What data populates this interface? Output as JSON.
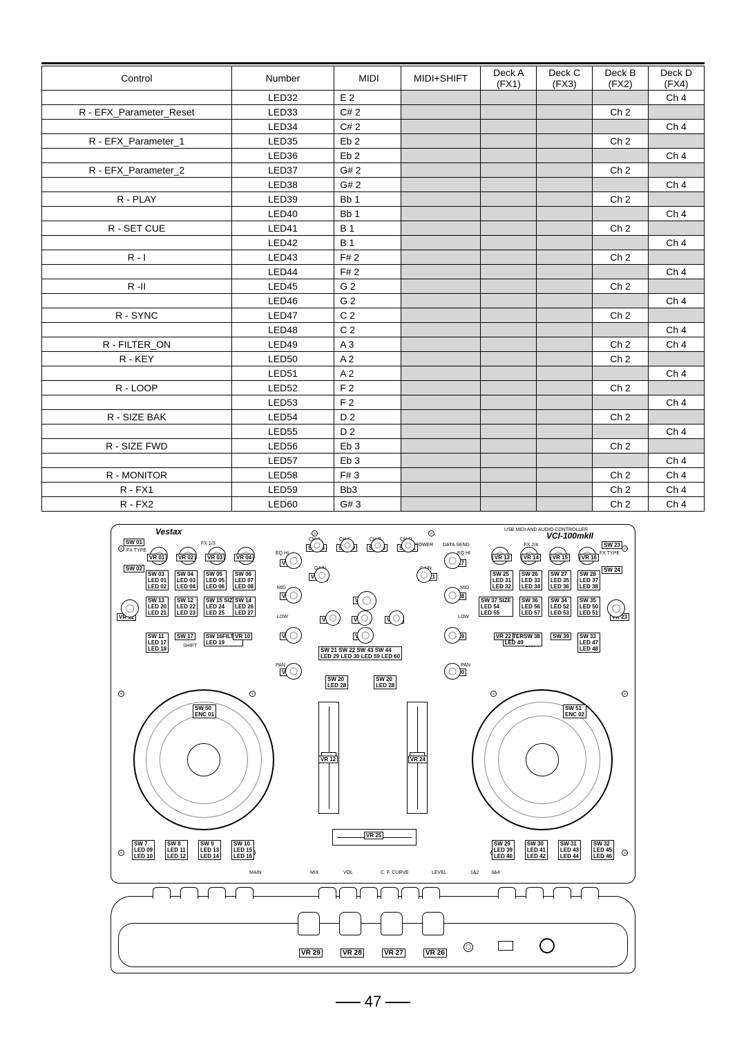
{
  "table": {
    "headers": [
      "Control",
      "Number",
      "MIDI",
      "MIDI+SHIFT",
      "Deck A\n(FX1)",
      "Deck C\n(FX3)",
      "Deck B\n(FX2)",
      "Deck D\n(FX4)"
    ],
    "rows": [
      {
        "control": "",
        "number": "LED32",
        "midi": "E 2",
        "deckA": "",
        "deckC": "",
        "deckB": "",
        "deckD": "Ch 4"
      },
      {
        "control": "R - EFX_Parameter_Reset",
        "number": "LED33",
        "midi": "C# 2",
        "deckA": "",
        "deckC": "",
        "deckB": "Ch 2",
        "deckD": ""
      },
      {
        "control": "",
        "number": "LED34",
        "midi": "C# 2",
        "deckA": "",
        "deckC": "",
        "deckB": "",
        "deckD": "Ch 4"
      },
      {
        "control": "R - EFX_Parameter_1",
        "number": "LED35",
        "midi": "Eb 2",
        "deckA": "",
        "deckC": "",
        "deckB": "Ch 2",
        "deckD": ""
      },
      {
        "control": "",
        "number": "LED36",
        "midi": "Eb 2",
        "deckA": "",
        "deckC": "",
        "deckB": "",
        "deckD": "Ch 4"
      },
      {
        "control": "R - EFX_Parameter_2",
        "number": "LED37",
        "midi": "G# 2",
        "deckA": "",
        "deckC": "",
        "deckB": "Ch 2",
        "deckD": ""
      },
      {
        "control": "",
        "number": "LED38",
        "midi": "G# 2",
        "deckA": "",
        "deckC": "",
        "deckB": "",
        "deckD": "Ch 4"
      },
      {
        "control": "R - PLAY",
        "number": "LED39",
        "midi": "Bb 1",
        "deckA": "",
        "deckC": "",
        "deckB": "Ch 2",
        "deckD": ""
      },
      {
        "control": "",
        "number": "LED40",
        "midi": "Bb 1",
        "deckA": "",
        "deckC": "",
        "deckB": "",
        "deckD": "Ch 4"
      },
      {
        "control": "R - SET CUE",
        "number": "LED41",
        "midi": "B 1",
        "deckA": "",
        "deckC": "",
        "deckB": "Ch 2",
        "deckD": ""
      },
      {
        "control": "",
        "number": "LED42",
        "midi": "B 1",
        "deckA": "",
        "deckC": "",
        "deckB": "",
        "deckD": "Ch 4"
      },
      {
        "control": "R - I",
        "number": "LED43",
        "midi": "F# 2",
        "deckA": "",
        "deckC": "",
        "deckB": "Ch 2",
        "deckD": ""
      },
      {
        "control": "",
        "number": "LED44",
        "midi": "F# 2",
        "deckA": "",
        "deckC": "",
        "deckB": "",
        "deckD": "Ch 4"
      },
      {
        "control": "R -II",
        "number": "LED45",
        "midi": "G 2",
        "deckA": "",
        "deckC": "",
        "deckB": "Ch 2",
        "deckD": ""
      },
      {
        "control": "",
        "number": "LED46",
        "midi": "G 2",
        "deckA": "",
        "deckC": "",
        "deckB": "",
        "deckD": "Ch 4"
      },
      {
        "control": "R - SYNC",
        "number": "LED47",
        "midi": "C 2",
        "deckA": "",
        "deckC": "",
        "deckB": "Ch 2",
        "deckD": ""
      },
      {
        "control": "",
        "number": "LED48",
        "midi": "C 2",
        "deckA": "",
        "deckC": "",
        "deckB": "",
        "deckD": "Ch 4"
      },
      {
        "control": "R - FILTER_ON",
        "number": "LED49",
        "midi": "A 3",
        "deckA": "",
        "deckC": "",
        "deckB": "Ch 2",
        "deckD": "Ch 4"
      },
      {
        "control": "R - KEY",
        "number": "LED50",
        "midi": "A 2",
        "deckA": "",
        "deckC": "",
        "deckB": "Ch 2",
        "deckD": ""
      },
      {
        "control": "",
        "number": "LED51",
        "midi": "A 2",
        "deckA": "",
        "deckC": "",
        "deckB": "",
        "deckD": "Ch 4"
      },
      {
        "control": "R - LOOP",
        "number": "LED52",
        "midi": "F 2",
        "deckA": "",
        "deckC": "",
        "deckB": "Ch 2",
        "deckD": ""
      },
      {
        "control": "",
        "number": "LED53",
        "midi": "F 2",
        "deckA": "",
        "deckC": "",
        "deckB": "",
        "deckD": "Ch 4"
      },
      {
        "control": "R - SIZE BAK",
        "number": "LED54",
        "midi": "D 2",
        "deckA": "",
        "deckC": "",
        "deckB": "Ch 2",
        "deckD": ""
      },
      {
        "control": "",
        "number": "LED55",
        "midi": "D 2",
        "deckA": "",
        "deckC": "",
        "deckB": "",
        "deckD": "Ch 4"
      },
      {
        "control": "R - SIZE FWD",
        "number": "LED56",
        "midi": "Eb 3",
        "deckA": "",
        "deckC": "",
        "deckB": "Ch 2",
        "deckD": ""
      },
      {
        "control": "",
        "number": "LED57",
        "midi": "Eb 3",
        "deckA": "",
        "deckC": "",
        "deckB": "",
        "deckD": "Ch 4"
      },
      {
        "control": "R - MONITOR",
        "number": "LED58",
        "midi": "F# 3",
        "deckA": "",
        "deckC": "",
        "deckB": "Ch 2",
        "deckD": "Ch 4"
      },
      {
        "control": "R - FX1",
        "number": "LED59",
        "midi": "Bb3",
        "deckA": "",
        "deckC": "",
        "deckB": "Ch 2",
        "deckD": "Ch 4"
      },
      {
        "control": "R - FX2",
        "number": "LED60",
        "midi": "G# 3",
        "deckA": "",
        "deckC": "",
        "deckB": "Ch 2",
        "deckD": "Ch 4"
      }
    ]
  },
  "diagram": {
    "brand": "Vestax",
    "model_sub": "USB MIDI AND AUDIO CONTROLLER",
    "model": "VCI-100mkII",
    "fx13": "FX 1/3",
    "fx24": "FX 2/4",
    "left_top_sw": "SW 01",
    "left_fxtype": "FX TYPE",
    "left_sw02": "SW 02",
    "right_top_sw": "SW 23",
    "right_fxtype": "FX TYPE",
    "right_sw24": "SW 24",
    "row1": [
      "VR 01",
      "VR 02",
      "VR 03",
      "VR 04"
    ],
    "row1R": [
      "VR 13",
      "VR 14",
      "VR 15",
      "VR 16"
    ],
    "row_l2": [
      "SW 03\nLED 01\nLED 02",
      "SW 04\nLED 03\nLED 04",
      "SW 05\nLED 05\nLED 06",
      "SW 06\nLED 07\nLED 08"
    ],
    "row_r2": [
      "SW 25\nLED 31\nLED 32",
      "SW 26\nLED 33\nLED 34",
      "SW 27\nLED 35\nLED 36",
      "SW 28\nLED 37\nLED 38"
    ],
    "row_l3": [
      "SW 13\nLED 20\nLED 21",
      "SW 12\nLED 22\nLED 23",
      "SW 15 SIZE\nLED 24\nLED 25",
      "SW 14\nLED 26\nLED 27"
    ],
    "row_r3": [
      "SW 37 SIZE\nLED 54\nLED 55",
      "SW 36\nLED 56\nLED 57",
      "SW 34\nLED 52\nLED 53",
      "SW 35\nLED 50\nLED 51"
    ],
    "vr11": "VR 11",
    "vr23": "VR 23",
    "row_l4": [
      "SW 11\nLED 17\nLED 18",
      "SW 17",
      "SW 16FILTER\nLED 19",
      "VR 10"
    ],
    "row_r4": [
      "VR 22",
      "FILTERSW 38\nLED 49",
      "SW 39",
      "SW 33\nLED 47\nLED 48"
    ],
    "shift1": "SHIFT",
    "shift2": "SHIFT",
    "bottom_left": [
      "SW 7\nLED 09\nLED 10",
      "SW 8\nLED 11\nLED 12",
      "SW 9\nLED 13\nLED 14",
      "SW 10\nLED 15\nLED 16"
    ],
    "bottom_right": [
      "SW 29\nLED 39\nLED 40",
      "SW 30\nLED 41\nLED 42",
      "SW 31\nLED 43\nLED 44",
      "SW 32\nLED 45\nLED 46"
    ],
    "platterL": "SW 50\nENC 01",
    "platterR": "SW 51\nENC 02",
    "ch_labels": [
      "CH-A",
      "CH-C",
      "CH-B",
      "CH-D"
    ],
    "sw_ch": [
      "SW 18",
      "SW 19",
      "SW 40",
      "SW 41"
    ],
    "eqhi_l": "EQ HI",
    "eqhi_r": "EQ HI",
    "vr05": "VR 05",
    "vr17": "VR 17",
    "gain": "GAIN",
    "vr09": "VR 09",
    "vr21": "VR 21",
    "mid": "MID",
    "vr06": "VR 06",
    "vr18": "VR 18",
    "vr46": "VR 46",
    "low": "LOW",
    "vr48": "VR 48",
    "vr45": "VR 45",
    "vr49": "VR 49",
    "vr07": "VR 07",
    "vr47": "VR 47",
    "vr19": "VR 19",
    "pan": "PAN",
    "center_row": "SW 21 SW 22 SW 43 SW 44\nLED 29 LED 30 LED 59 LED 60",
    "vr08": "VR 08",
    "vr20": "VR 20",
    "sw20_l": "SW 20\nLED 28",
    "sw20_r": "SW 20\nLED 28",
    "vr12": "VR 12",
    "vr24": "VR 24",
    "vr25": "VR 25",
    "lab_main": "MAIN",
    "lab_mix": "MIX",
    "lab_vol": "VOL",
    "lab_cf": "C. F. CURVE",
    "lab_level": "LEVEL",
    "lab_182": "1&2",
    "lab_384": "3&4",
    "power": "POWER",
    "data": "DATA SEND",
    "front": [
      "VR 29",
      "VR 28",
      "VR 27",
      "VR 26"
    ]
  },
  "page_number": "47"
}
